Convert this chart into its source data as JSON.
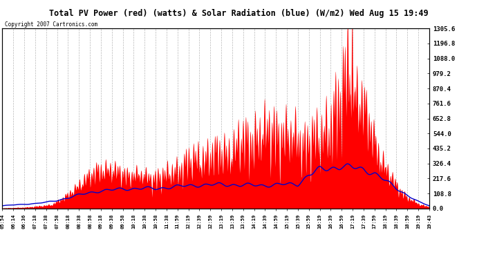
{
  "title": "Total PV Power (red) (watts) & Solar Radiation (blue) (W/m2) Wed Aug 15 19:49",
  "copyright": "Copyright 2007 Cartronics.com",
  "y_ticks": [
    0.0,
    108.8,
    217.6,
    326.4,
    435.2,
    544.0,
    652.8,
    761.6,
    870.4,
    979.2,
    1088.0,
    1196.8,
    1305.6
  ],
  "x_labels": [
    "05:54",
    "06:14",
    "06:36",
    "07:18",
    "07:38",
    "07:58",
    "08:18",
    "08:38",
    "08:58",
    "09:18",
    "09:38",
    "09:58",
    "10:18",
    "10:38",
    "10:58",
    "11:38",
    "11:59",
    "12:19",
    "12:39",
    "12:59",
    "13:19",
    "13:39",
    "13:59",
    "14:19",
    "14:39",
    "14:59",
    "15:19",
    "15:39",
    "15:59",
    "16:19",
    "16:39",
    "16:59",
    "17:19",
    "17:39",
    "17:59",
    "18:19",
    "18:39",
    "18:59",
    "19:19",
    "19:43"
  ],
  "bg_color": "#ffffff",
  "plot_bg_color": "#ffffff",
  "grid_color": "#b0b0b0",
  "red_color": "#ff0000",
  "blue_color": "#0000cc",
  "title_bg": "#c8c8c8",
  "ymax": 1305.6,
  "solar_scale": 2.44
}
